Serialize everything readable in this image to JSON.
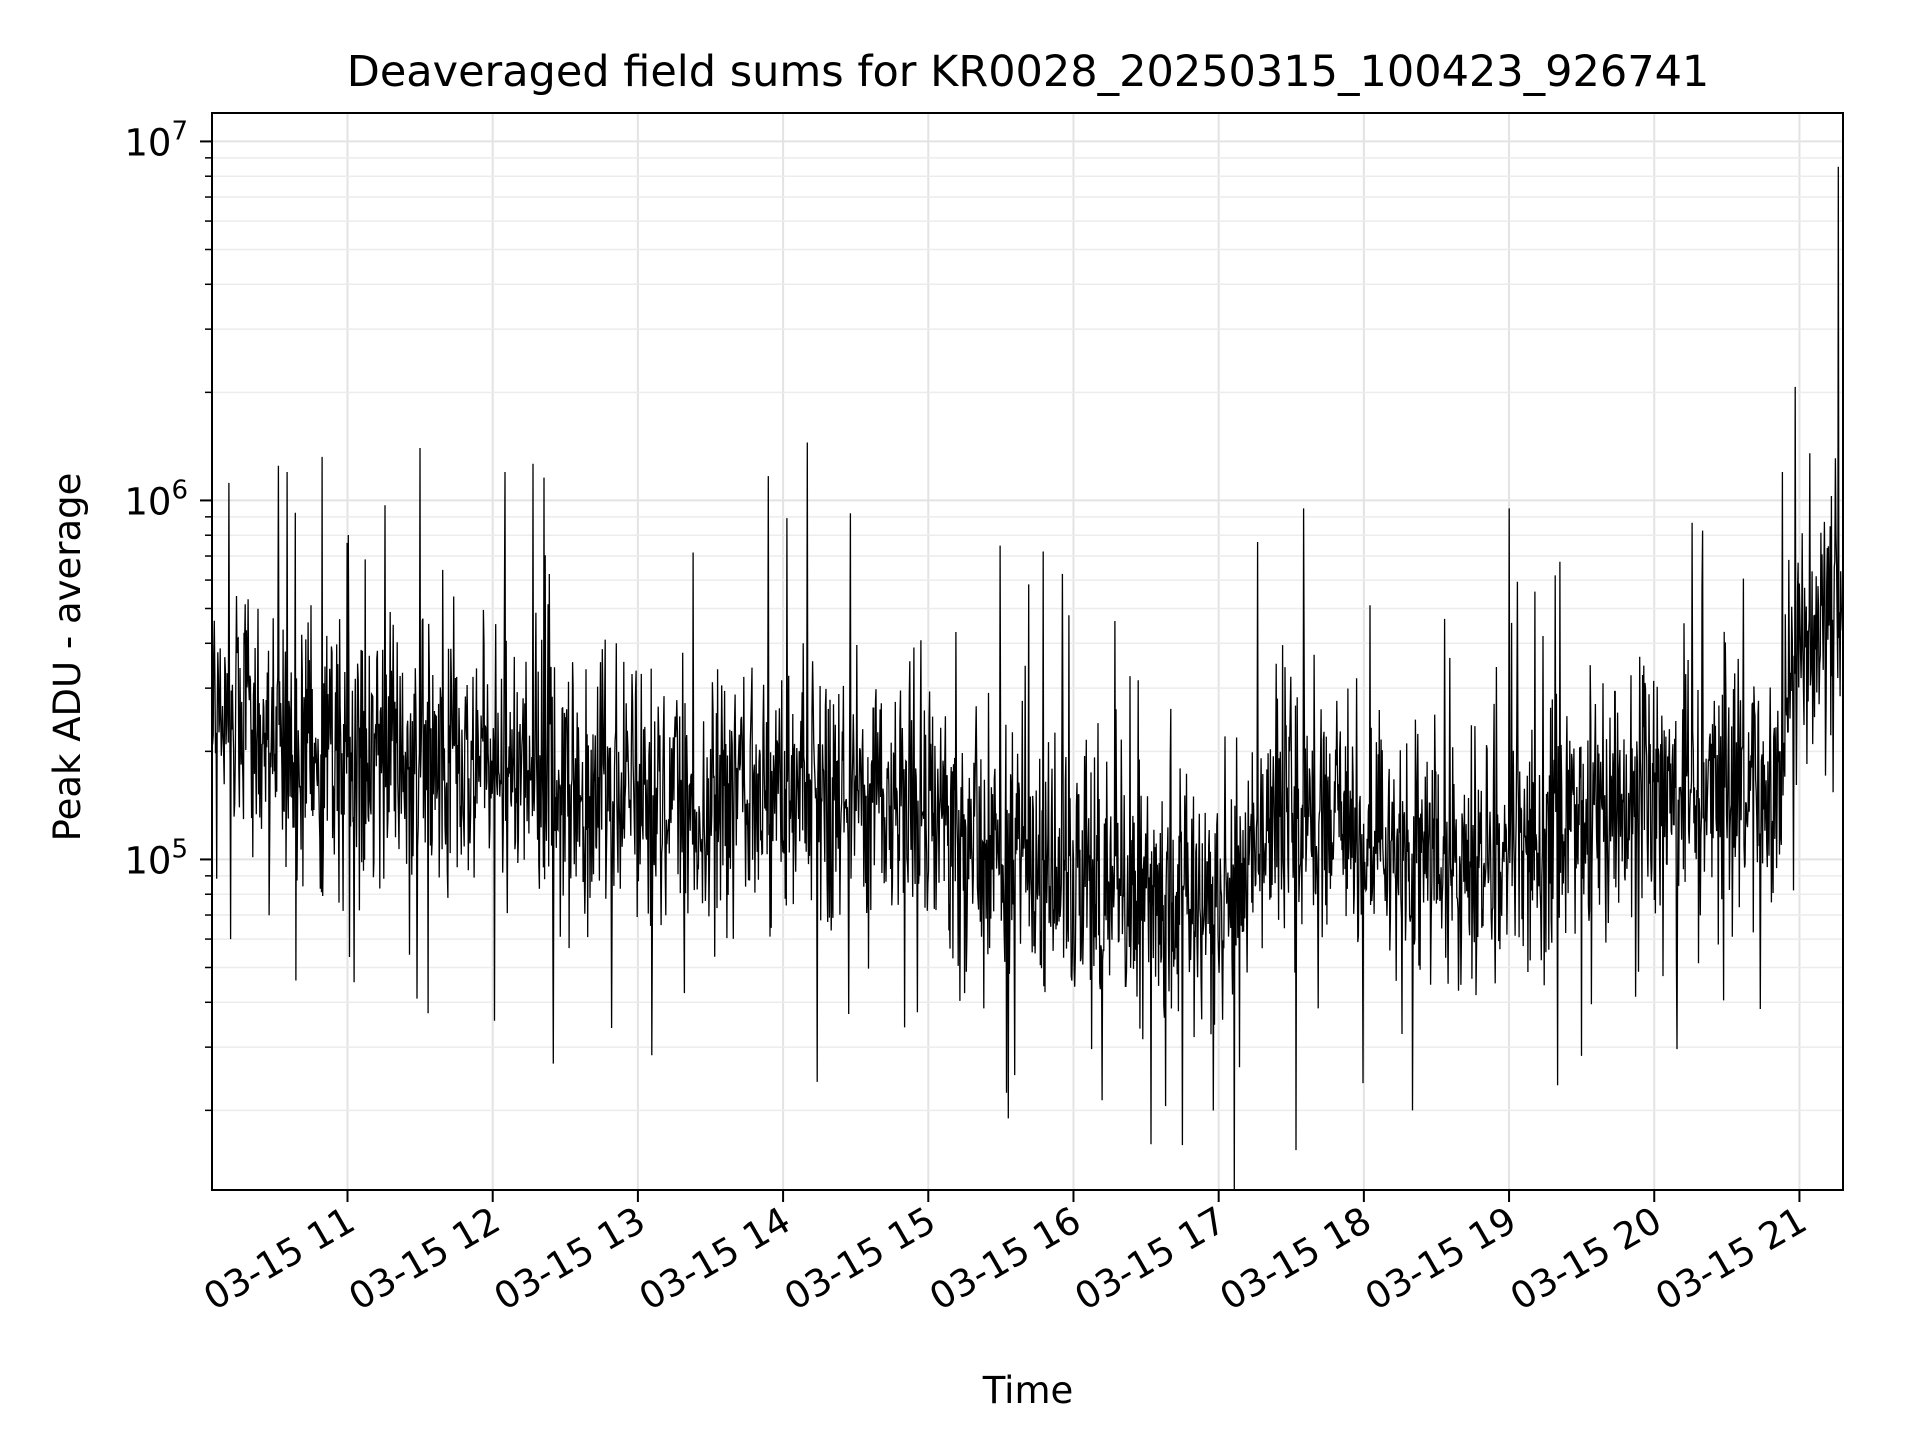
{
  "chart_data": {
    "type": "line",
    "title": "Deaveraged field sums for KR0028_20250315_100423_926741",
    "xlabel": "Time",
    "ylabel": "Peak ADU - average",
    "yscale": "log",
    "ylim": [
      12000,
      12000000
    ],
    "xlim": [
      "2025-03-15 10:04",
      "2025-03-15 21:18"
    ],
    "grid": true,
    "x_ticks": [
      "03-15 11",
      "03-15 12",
      "03-15 13",
      "03-15 14",
      "03-15 15",
      "03-15 16",
      "03-15 17",
      "03-15 18",
      "03-15 19",
      "03-15 20",
      "03-15 21"
    ],
    "y_ticks": [
      {
        "base": "10",
        "exp": "5",
        "value": 100000
      },
      {
        "base": "10",
        "exp": "6",
        "value": 1000000
      },
      {
        "base": "10",
        "exp": "7",
        "value": 10000000
      }
    ],
    "line_color": "#000000",
    "series": [
      {
        "x": [
          "10:04",
          "10:30",
          "11:00",
          "11:30",
          "12:00",
          "12:30",
          "13:00",
          "13:30",
          "14:00",
          "14:30",
          "15:00",
          "15:30",
          "16:00",
          "16:30",
          "17:00",
          "17:30",
          "18:00",
          "18:30",
          "19:00",
          "19:30",
          "20:00",
          "20:30",
          "20:50",
          "21:00",
          "21:10",
          "21:18"
        ],
        "y": [
          260000,
          220000,
          200000,
          200000,
          180000,
          160000,
          150000,
          150000,
          170000,
          170000,
          130000,
          100000,
          90000,
          75000,
          80000,
          150000,
          110000,
          100000,
          110000,
          120000,
          150000,
          160000,
          150000,
          420000,
          450000,
          480000
        ],
        "peaks": [
          {
            "x": "10:35",
            "y": 1200000
          },
          {
            "x": "11:30",
            "y": 1400000
          },
          {
            "x": "12:05",
            "y": 1200000
          },
          {
            "x": "14:10",
            "y": 1450000
          },
          {
            "x": "17:35",
            "y": 950000
          },
          {
            "x": "19:00",
            "y": 950000
          },
          {
            "x": "20:53",
            "y": 1200000
          },
          {
            "x": "21:16",
            "y": 8500000
          }
        ],
        "troughs": [
          {
            "x": "12:25",
            "y": 27000
          },
          {
            "x": "14:14",
            "y": 24000
          },
          {
            "x": "15:33",
            "y": 19000
          },
          {
            "x": "16:45",
            "y": 16000
          },
          {
            "x": "17:32",
            "y": 15500
          },
          {
            "x": "18:20",
            "y": 20000
          },
          {
            "x": "19:20",
            "y": 23500
          }
        ]
      }
    ]
  }
}
